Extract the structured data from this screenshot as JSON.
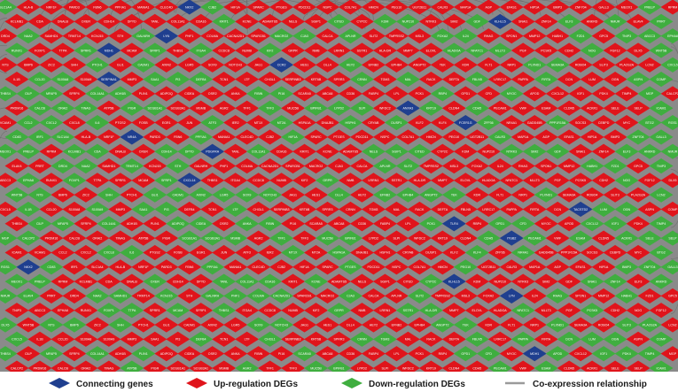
{
  "legend": {
    "connecting": "Connecting genes",
    "up": "Up-regulation DEGs",
    "down": "Down-regulation DEGs",
    "edge": "Co-expression relationship"
  },
  "colors": {
    "connecting": "#1f3f8f",
    "up": "#e0141b",
    "down": "#3fae3f",
    "edge_bg": "#8a8a8a",
    "edge_line": "#9a9a9a"
  },
  "connecting_genes": [
    "NKX2",
    "KLHL15",
    "LYN",
    "MDH1",
    "CCR2",
    "SERPINA1",
    "ANXA3",
    "FCER1G",
    "NR4A",
    "PDGFRA",
    "CXCL14",
    "TACSTD2",
    "TLR4",
    "ITGB2"
  ],
  "genes": [
    "SLC1A4",
    "HLA-B",
    "NRF1F",
    "PARD3",
    "FBN6",
    "PPFIA1",
    "MANIA1",
    "CLEC4D",
    "CJB2",
    "HIF1A",
    "SPARC",
    "PTGES",
    "PDCD11",
    "NSPC",
    "COL7A1",
    "HMCN",
    "PEG10",
    "UGT2B11",
    "CALR3",
    "MAP1A",
    "AGP",
    "EFAS1",
    "HIP1A",
    "BMP3",
    "ZNF704",
    "GALL3",
    "MEOX1",
    "PRELP",
    "RPRM",
    "KCLMB1",
    "CDA",
    "DNALB",
    "OXER",
    "CDH14",
    "DPYD",
    "TANL",
    "COL11A1",
    "CDA16",
    "KRIT1",
    "KCNE",
    "ADAMTS5",
    "NELS",
    "SGIP1",
    "CITED",
    "CYP2C",
    "KDM",
    "NUP210",
    "NTRK3",
    "SIM2",
    "GDF",
    "SNAI1",
    "ZNF14",
    "ELF3",
    "ANKRD",
    "NMUR",
    "ELAV4",
    "PRRT",
    "DRD4",
    "NAA2",
    "SAMHD1",
    "TRMT14",
    "KCNJ15",
    "STH",
    "GALNRH",
    "PHF1",
    "COLMA",
    "CACNA2D1",
    "SPARCB1",
    "MACRO2",
    "CJA3",
    "CALCA",
    "APLNR",
    "SLIT2",
    "TMPRSS2",
    "MSL3",
    "FOXA2",
    "IL24",
    "RHAG",
    "SPON1",
    "MMP12",
    "HABH1",
    "FZD1",
    "GPC5",
    "TNIP3",
    "ABCC3",
    "EPHA8",
    "RUNX1",
    "FOXP1",
    "TTPA",
    "SPRR1",
    "MCAM",
    "SFRP1",
    "THBS1",
    "ITGA4",
    "CCDC8",
    "NUMB",
    "KIF2",
    "GRPR",
    "NMB",
    "LRRN1",
    "SSTR1",
    "HLA-DR",
    "MMP7",
    "ELOVL",
    "HLADOA",
    "NFATC1",
    "MLLT3",
    "PGF",
    "PCSK5",
    "CDH2",
    "NOG",
    "FGF12",
    "DLX5",
    "WNT5B",
    "NTS",
    "BMP6",
    "ZIC2",
    "SHH",
    "PTCH1",
    "GLI1",
    "CADM1",
    "AXIN2",
    "LGR5",
    "SOX9",
    "NOTCH3",
    "JAG1",
    "HES1",
    "DLL4",
    "HEY2",
    "EFNB2",
    "EPHB4",
    "ANGPT2",
    "TEK",
    "KDR",
    "FLT1",
    "NRP1",
    "PLXND1",
    "SEMA3A",
    "ROBO4",
    "SLIT3",
    "PLA2G2A",
    "LCN2",
    "CXCL5",
    "IL1B",
    "CCL20",
    "S100A8",
    "S100A9",
    "MMP3",
    "SAA1",
    "PI3",
    "DEFB4",
    "TCN1",
    "LTF",
    "CHI3L1",
    "SERPINB3",
    "KRT6B",
    "SPRR3",
    "CRNN",
    "TGM3",
    "MAL",
    "RACK",
    "DEFTA",
    "FBLN5",
    "LRRC17",
    "PAPPA",
    "FIRTA",
    "DCN",
    "LUM",
    "OGN",
    "ASPN",
    "COMP",
    "THBS4",
    "CILP",
    "MFAP5",
    "SFRP4",
    "COL14A1",
    "ADH1B",
    "PLIN1",
    "ADIPOQ",
    "CIDEA",
    "OSR2",
    "ANKA",
    "FIBIN",
    "PI16",
    "SCARA5",
    "ABCA8",
    "CD36",
    "FABP4",
    "LPL",
    "PCK1",
    "RBP4",
    "GPD1",
    "CFD",
    "MYOC",
    "APOD",
    "CXCL12",
    "IGF1",
    "PDK4",
    "TIMP4",
    "MGP",
    "CALCP2",
    "PRDM16",
    "CALCB",
    "ORAI2",
    "TINAG",
    "ATP5B",
    "PIGR",
    "SCGB1A1",
    "SCGB3A1",
    "MSMB",
    "AGR2",
    "TFF1",
    "TFF3",
    "MUC5B",
    "BPIFB1",
    "LYPD2",
    "SLPI",
    "WFDC2",
    "KRT19",
    "CLDN4",
    "CDH5",
    "PECAM1",
    "VWF",
    "ESAM",
    "CLDN5",
    "ACKR1",
    "SELE",
    "SELP",
    "ICAM1",
    "VCAM1",
    "CCL2",
    "CXCL2",
    "CXCL8",
    "IL6",
    "PTGS2",
    "FOSB",
    "EGR1",
    "JUN",
    "ATF3",
    "IER2",
    "MT1X",
    "MT2A",
    "HSPA1A",
    "DNAJB1",
    "HSPH1",
    "CRYAB",
    "DUSP1",
    "KLF2",
    "KLF4",
    "ZFP36",
    "NR4A1",
    "GADD45B",
    "PPP1R15A",
    "SOCS3",
    "CEBPD",
    "MYC",
    "BTG2",
    "RGS1",
    "CD83",
    "IRF1"
  ],
  "pattern_up_vs_down": "mostly-up"
}
